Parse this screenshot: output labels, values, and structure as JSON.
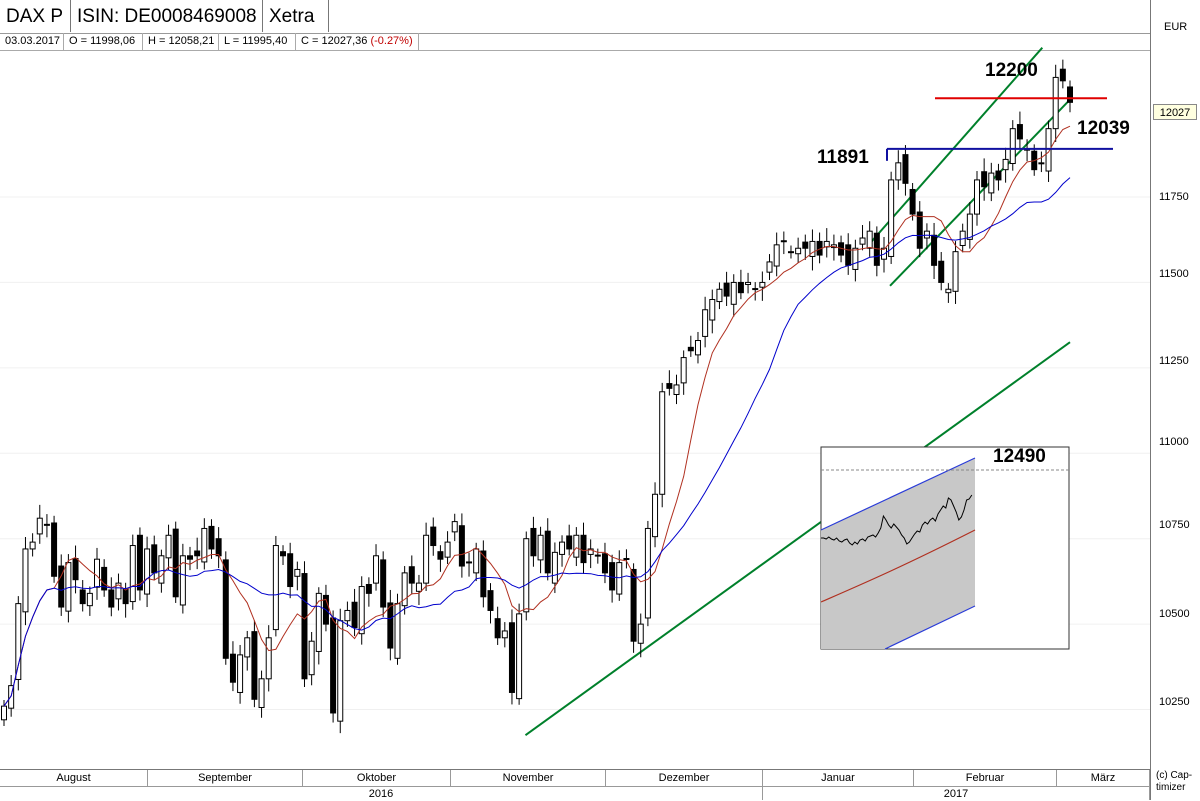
{
  "header": {
    "name": "DAX P",
    "isin": "ISIN: DE0008469008",
    "exchange": "Xetra"
  },
  "info": {
    "date": "03.03.2017",
    "open": "O = 11998,06",
    "high": "H = 12058,21",
    "low": "L = 11995,40",
    "close": "C = 12027,36",
    "change": "(-0.27%)"
  },
  "currency": "EUR",
  "current_price_label": "12027",
  "copyright": [
    "(c) Cap-",
    "timizer"
  ],
  "chart_data": {
    "type": "candlestick",
    "ylim": [
      10100,
      12200
    ],
    "ytick_labels": [
      "11750",
      "11500",
      "11250",
      "11000",
      "10750",
      "10500",
      "10250"
    ],
    "months": [
      "August",
      "September",
      "Oktober",
      "November",
      "Dezember",
      "Januar",
      "Februar",
      "März"
    ],
    "years": [
      "2016",
      "2017"
    ],
    "annotations": [
      "12200",
      "11891",
      "12039",
      "12490"
    ],
    "levels": {
      "resistance": 12039,
      "support": 11891
    },
    "trendlines": [
      {
        "from": [
          "2016-11-09",
          10175
        ],
        "to": [
          "2017-03-07",
          11325
        ],
        "color": "#00802b"
      },
      {
        "from": [
          "2017-01-27",
          11490
        ],
        "to": [
          "2017-03-07",
          12035
        ],
        "color": "#00802b"
      },
      {
        "from": [
          "2017-01-23",
          11620
        ],
        "to": [
          "2017-03-01",
          12187
        ],
        "color": "#00802b"
      }
    ],
    "series": [
      {
        "name": "",
        "role": "price",
        "values": [
          10260,
          10320,
          10560,
          10720,
          10740,
          10810,
          10790,
          10640,
          10550,
          10680,
          10630,
          10560,
          10590,
          10690,
          10600,
          10550,
          10620,
          10560,
          10730,
          10600,
          10720,
          10650,
          10700,
          10760,
          10580,
          10700,
          10690,
          10700,
          10780,
          10720,
          10700,
          10400,
          10330,
          10410,
          10460,
          10280,
          10340,
          10460,
          10730,
          10700,
          10610,
          10660,
          10340,
          10450,
          10590,
          10500,
          10240,
          10510,
          10540,
          10490,
          10610,
          10590,
          10700,
          10550,
          10430,
          10560,
          10650,
          10620,
          10620,
          10760,
          10730,
          10690,
          10740,
          10800,
          10670,
          10680,
          10720,
          10580,
          10540,
          10460,
          10480,
          10300,
          10530,
          10750,
          10700,
          10760,
          10650,
          10710,
          10740,
          10720,
          10760,
          10680,
          10720,
          10700,
          10650,
          10600,
          10680,
          10690,
          10450,
          10500,
          10780,
          10880,
          11180,
          11190,
          11200,
          11280,
          11300,
          11330,
          11420,
          11450,
          11480,
          11460,
          11500,
          11470,
          11500,
          11480,
          11500,
          11560,
          11610,
          11620,
          11590,
          11600,
          11600,
          11620,
          11580,
          11620,
          11610,
          11580,
          11550,
          11600,
          11630,
          11650,
          11550,
          11600,
          11800,
          11850,
          11790,
          11700,
          11600,
          11650,
          11550,
          11500,
          11480,
          11590,
          11650,
          11700,
          11800,
          11780,
          11820,
          11800,
          11860,
          11950,
          11920,
          11890,
          11830,
          11850,
          11950,
          12100,
          12090,
          12027
        ]
      },
      {
        "name": "",
        "role": "fast moving average",
        "color": "#b03020"
      },
      {
        "name": "",
        "role": "slow moving average",
        "color": "#0000cc"
      }
    ],
    "inset": {
      "label": "12490",
      "series": [
        "price",
        "fast moving average",
        "upper band",
        "lower band"
      ]
    }
  }
}
